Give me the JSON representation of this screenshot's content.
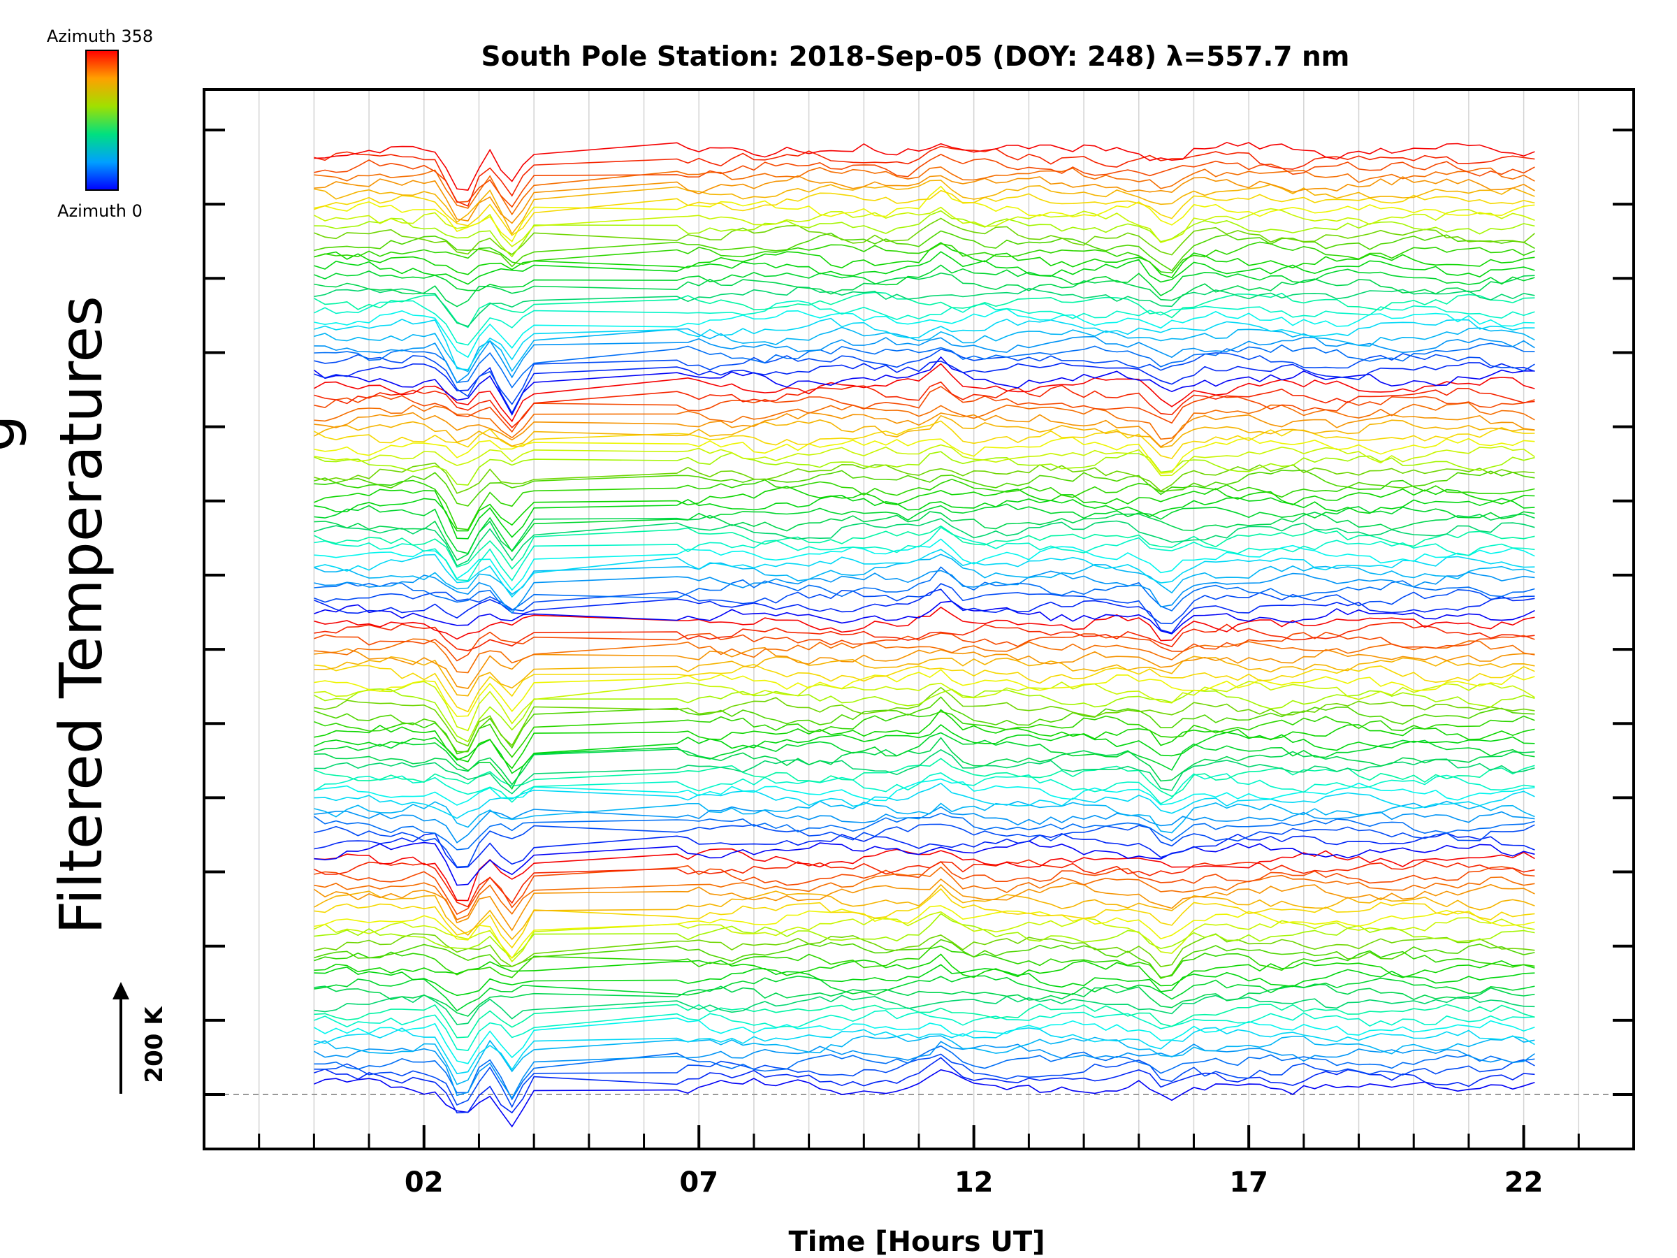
{
  "chart_data": {
    "type": "line",
    "title": "South Pole Station: 2018-Sep-05 (DOY: 248) λ=557.7 nm",
    "xlabel": "Time [Hours UT]",
    "ylabel": "Filtered Temperatures",
    "ylabel_partial": "g",
    "xlim": [
      -2,
      24
    ],
    "x_ticks": [
      "02",
      "07",
      "12",
      "17",
      "22"
    ],
    "x_tick_values": [
      2,
      7,
      12,
      17,
      22
    ],
    "y_major_ticks": 14,
    "scale_bar_label": "200 K",
    "scale_bar_value_K": 200,
    "colorbar": {
      "top_label": "Azimuth 358",
      "bottom_label": "Azimuth 0",
      "min": 0,
      "max": 358,
      "colormap": "rainbow"
    },
    "traces": {
      "count": 112,
      "azimuth_range": [
        0,
        358
      ],
      "groups": 4,
      "per_group": 28,
      "time_start_hours": 0.0,
      "time_end_hours": 22.2,
      "data_gap_hours": [
        4.0,
        6.6
      ],
      "offset_step_K": 28
    },
    "events": [
      {
        "time": 2.7,
        "description": "large negative spike"
      },
      {
        "time": 3.6,
        "description": "negative spike"
      },
      {
        "time": 11.4,
        "description": "spike"
      },
      {
        "time": 15.5,
        "description": "spike"
      }
    ],
    "legend": "colorbar top-left"
  },
  "colors": {
    "axis": "#000000",
    "grid": "#d3d3d3",
    "baseline": "#999999",
    "background": "#ffffff"
  }
}
